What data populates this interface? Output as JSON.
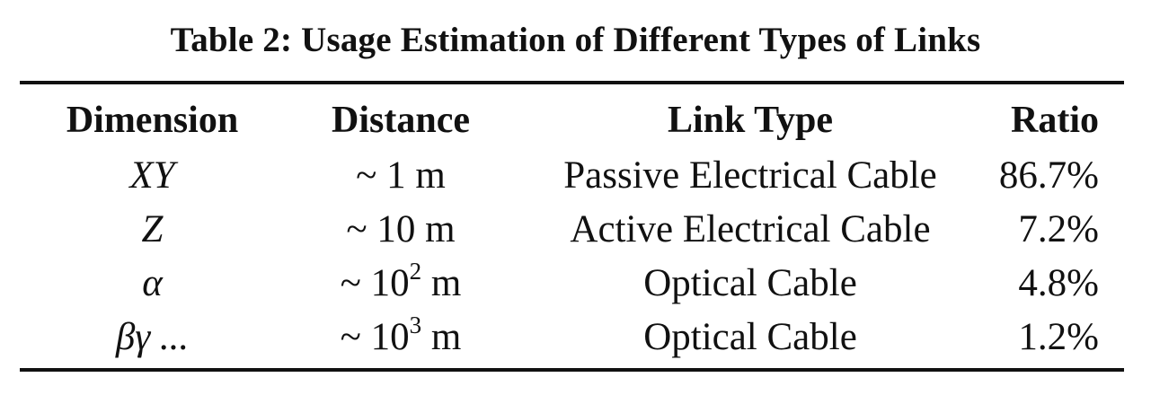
{
  "caption": "Table 2: Usage Estimation of Different Types of Links",
  "headers": {
    "dimension": "Dimension",
    "distance": "Distance",
    "link_type": "Link Type",
    "ratio": "Ratio"
  },
  "rows": [
    {
      "dimension": "XY",
      "distance_prefix": "~ 1",
      "distance_exponent": "",
      "distance_unit": " m",
      "link_type": "Passive Electrical Cable",
      "ratio": "86.7%"
    },
    {
      "dimension": "Z",
      "distance_prefix": "~ 10",
      "distance_exponent": "",
      "distance_unit": " m",
      "link_type": "Active Electrical Cable",
      "ratio": "7.2%"
    },
    {
      "dimension": "α",
      "distance_prefix": "~ 10",
      "distance_exponent": "2",
      "distance_unit": " m",
      "link_type": "Optical Cable",
      "ratio": "4.8%"
    },
    {
      "dimension": "βγ ...",
      "distance_prefix": "~ 10",
      "distance_exponent": "3",
      "distance_unit": " m",
      "link_type": "Optical Cable",
      "ratio": "1.2%"
    }
  ]
}
